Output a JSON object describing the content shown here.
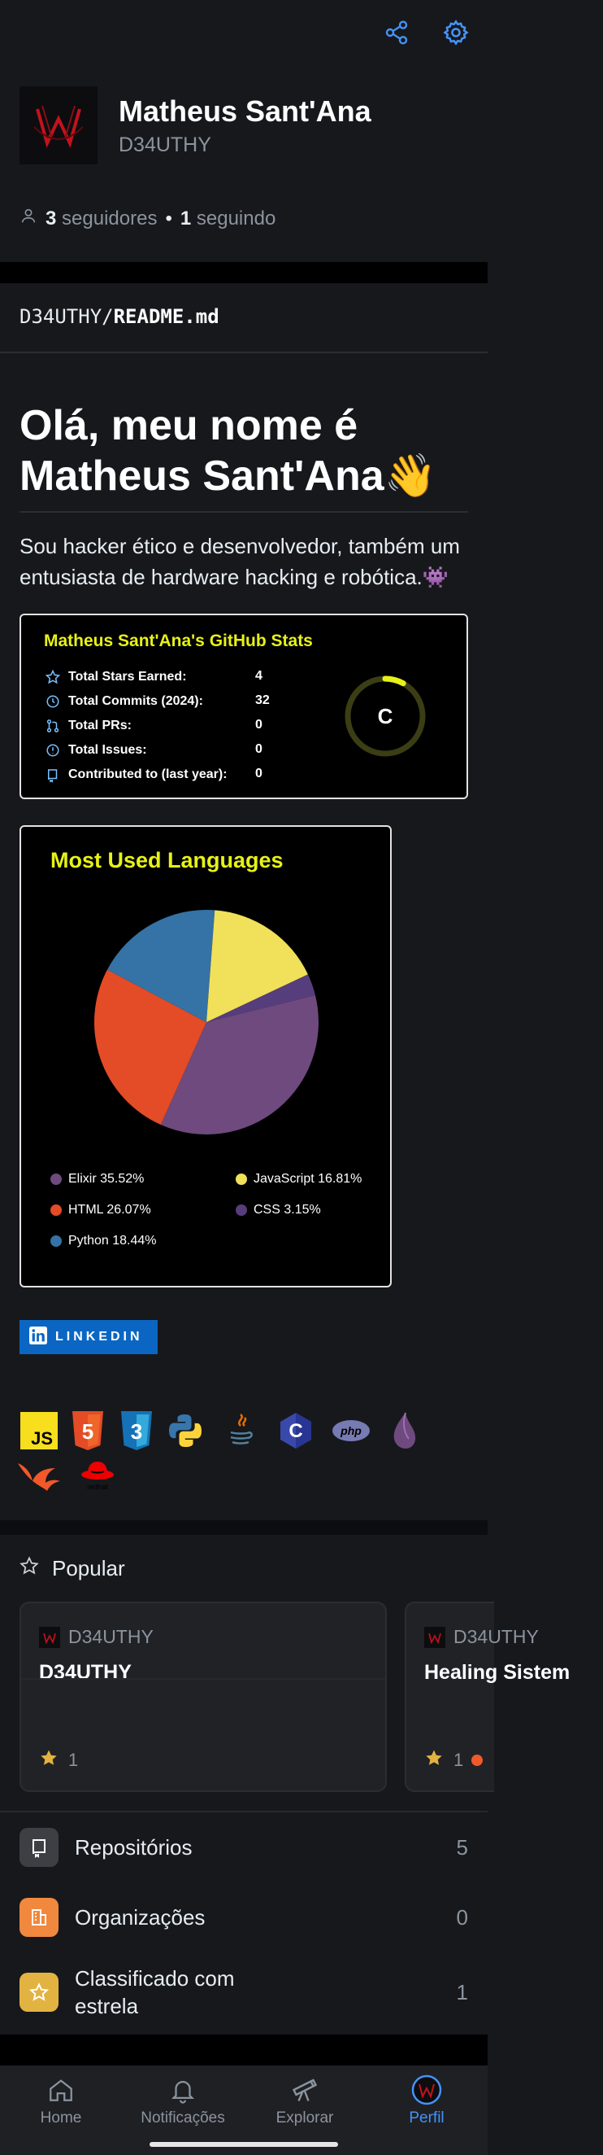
{
  "profile": {
    "name": "Matheus Sant'Ana",
    "login": "D34UTHY",
    "followers_count": "3",
    "followers_label": "seguidores",
    "dot": "•",
    "following_count": "1",
    "following_label": "seguindo"
  },
  "readme": {
    "owner": "D34UTHY",
    "slash": "/",
    "file": "README.md",
    "greeting": "Olá, meu nome é Matheus Sant'Ana👋",
    "bio": "Sou hacker ético e desenvolvedor, também um entusiasta de hardware hacking e robótica.👾"
  },
  "stats": {
    "title": "Matheus Sant'Ana's GitHub Stats",
    "rows": [
      {
        "label": "Total Stars Earned:",
        "value": "4"
      },
      {
        "label": "Total Commits (2024):",
        "value": "32"
      },
      {
        "label": "Total PRs:",
        "value": "0"
      },
      {
        "label": "Total Issues:",
        "value": "0"
      },
      {
        "label": "Contributed to (last year):",
        "value": "0"
      }
    ],
    "grade": "C",
    "grade_progress": 0.08,
    "colors": {
      "title": "#e7f216",
      "ring": "#e7f216"
    }
  },
  "languages": {
    "title": "Most Used Languages",
    "items": [
      {
        "label": "Elixir 35.52%",
        "name": "Elixir",
        "value": 35.52,
        "color": "#6e4a7e"
      },
      {
        "label": "JavaScript 16.81%",
        "name": "JavaScript",
        "value": 16.81,
        "color": "#f1e05a"
      },
      {
        "label": "HTML 26.07%",
        "name": "HTML",
        "value": 26.07,
        "color": "#e34c26"
      },
      {
        "label": "CSS 3.15%",
        "name": "CSS",
        "value": 3.15,
        "color": "#563d7c"
      },
      {
        "label": "Python 18.44%",
        "name": "Python",
        "value": 18.44,
        "color": "#3572a5"
      }
    ]
  },
  "chart_data": {
    "type": "pie",
    "title": "Most Used Languages",
    "categories": [
      "Elixir",
      "JavaScript",
      "HTML",
      "CSS",
      "Python"
    ],
    "values": [
      35.52,
      16.81,
      26.07,
      3.15,
      18.44
    ],
    "colors": [
      "#6e4a7e",
      "#f1e05a",
      "#e34c26",
      "#563d7c",
      "#3572a5"
    ],
    "legend": "bottom"
  },
  "linkedin": {
    "label": "LINKEDIN",
    "color": "#0a66c2"
  },
  "skills": [
    "javascript-icon",
    "html5-icon",
    "css3-icon",
    "python-icon",
    "java-icon",
    "c-icon",
    "php-icon",
    "elixir-icon",
    "phoenix-icon",
    "redhat-icon"
  ],
  "popular": {
    "title": "Popular",
    "repos": [
      {
        "owner": "D34UTHY",
        "name": "D34UTHY",
        "stars": "1"
      },
      {
        "owner": "D34UTHY",
        "name": "Healing Sistem",
        "stars": "1"
      }
    ]
  },
  "lists": [
    {
      "label": "Repositórios",
      "count": "5",
      "icon": "repo-icon",
      "color": "#3d3f45"
    },
    {
      "label": "Organizações",
      "count": "0",
      "icon": "organization-icon",
      "color": "#f0883e"
    },
    {
      "label": "Classificado com estrela",
      "count": "1",
      "icon": "star-icon",
      "color": "#e3b341"
    }
  ],
  "nav": [
    {
      "label": "Home",
      "icon": "home-icon"
    },
    {
      "label": "Notificações",
      "icon": "bell-icon"
    },
    {
      "label": "Explorar",
      "icon": "telescope-icon"
    },
    {
      "label": "Perfil",
      "icon": "avatar",
      "active": true
    }
  ],
  "accent": "#4493f8"
}
